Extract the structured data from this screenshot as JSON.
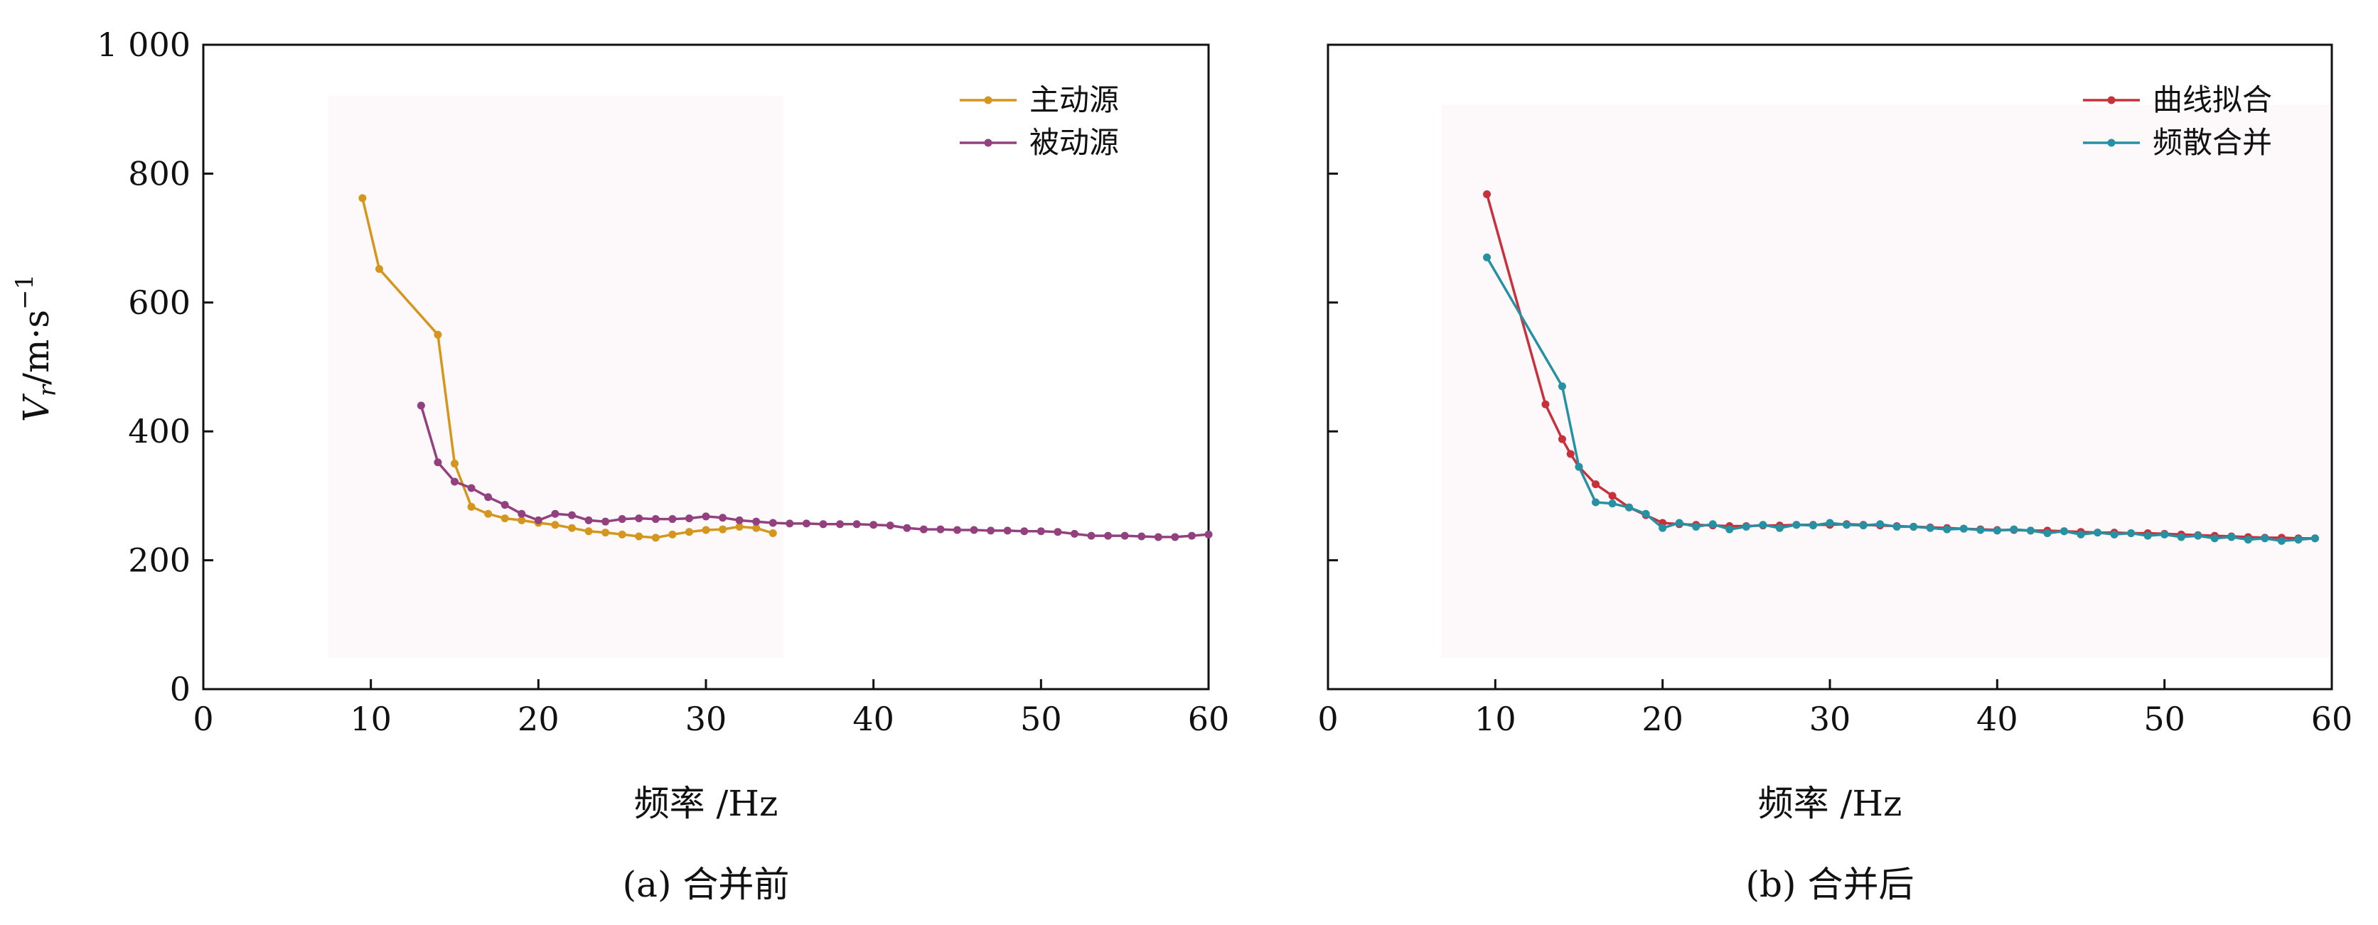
{
  "ytitle": {
    "main": "V",
    "sub": "r",
    "unit": "/m·s",
    "sup": "−1"
  },
  "chart_data": [
    {
      "type": "line",
      "caption": "(a) 合并前",
      "xlabel": "频率 /Hz",
      "ylabel": "Vr/m·s−1",
      "xlim": [
        0,
        60
      ],
      "ylim": [
        0,
        1000
      ],
      "xticks": [
        0,
        10,
        20,
        30,
        40,
        50,
        60
      ],
      "yticks": [
        0,
        200,
        400,
        600,
        800,
        1000
      ],
      "ytick_labels": [
        "0",
        "200",
        "400",
        "600",
        "800",
        "1 000"
      ],
      "legend_position": "top-right",
      "series": [
        {
          "name": "主动源",
          "color": "#d4961c",
          "x": [
            9.5,
            10.5,
            14.0,
            15.0,
            16.0,
            17.0,
            18.0,
            19.0,
            20.0,
            21.0,
            22.0,
            23.0,
            24.0,
            25.0,
            26.0,
            27.0,
            28.0,
            29.0,
            30.0,
            31.0,
            32.0,
            33.0,
            34.0
          ],
          "y": [
            762,
            652,
            550,
            350,
            283,
            272,
            265,
            262,
            258,
            255,
            250,
            245,
            243,
            240,
            237,
            235,
            240,
            244,
            247,
            248,
            252,
            250,
            242
          ]
        },
        {
          "name": "被动源",
          "color": "#93407e",
          "x": [
            13,
            14,
            15,
            16,
            17,
            18,
            19,
            20,
            21,
            22,
            23,
            24,
            25,
            26,
            27,
            28,
            29,
            30,
            31,
            32,
            33,
            34,
            35,
            36,
            37,
            38,
            39,
            40,
            41,
            42,
            43,
            44,
            45,
            46,
            47,
            48,
            49,
            50,
            51,
            52,
            53,
            54,
            55,
            56,
            57,
            58,
            59,
            60
          ],
          "y": [
            440,
            352,
            322,
            312,
            298,
            286,
            272,
            262,
            272,
            270,
            262,
            260,
            264,
            265,
            264,
            264,
            265,
            268,
            266,
            262,
            260,
            258,
            257,
            257,
            256,
            256,
            256,
            255,
            254,
            250,
            248,
            248,
            247,
            247,
            246,
            246,
            245,
            245,
            244,
            241,
            238,
            238,
            238,
            237,
            236,
            236,
            238,
            240
          ]
        }
      ]
    },
    {
      "type": "line",
      "caption": "(b) 合并后",
      "xlabel": "频率 /Hz",
      "ylabel": "",
      "xlim": [
        0,
        60
      ],
      "ylim": [
        0,
        1000
      ],
      "xticks": [
        0,
        10,
        20,
        30,
        40,
        50,
        60
      ],
      "yticks": [
        0,
        200,
        400,
        600,
        800,
        1000
      ],
      "ytick_labels": [],
      "legend_position": "top-right",
      "series": [
        {
          "name": "曲线拟合",
          "color": "#c8303c",
          "x": [
            9.5,
            13,
            14,
            14.5,
            15,
            16,
            17,
            18,
            19,
            20,
            21,
            22,
            23,
            24,
            25,
            26,
            27,
            28,
            29,
            30,
            31,
            32,
            33,
            34,
            35,
            36,
            37,
            38,
            39,
            40,
            41,
            42,
            43,
            44,
            45,
            46,
            47,
            48,
            49,
            50,
            51,
            52,
            53,
            54,
            55,
            56,
            57,
            58,
            59
          ],
          "y": [
            768,
            442,
            388,
            365,
            345,
            318,
            300,
            282,
            270,
            258,
            256,
            255,
            254,
            253,
            253,
            254,
            254,
            255,
            255,
            255,
            256,
            255,
            254,
            253,
            252,
            251,
            250,
            249,
            248,
            247,
            247,
            246,
            246,
            245,
            244,
            243,
            243,
            242,
            242,
            241,
            240,
            239,
            238,
            237,
            236,
            235,
            235,
            234,
            234
          ]
        },
        {
          "name": "频散合并",
          "color": "#2591a3",
          "x": [
            9.5,
            14,
            15,
            16,
            17,
            18,
            19,
            20,
            21,
            22,
            23,
            24,
            25,
            26,
            27,
            28,
            29,
            30,
            31,
            32,
            33,
            34,
            35,
            36,
            37,
            38,
            39,
            40,
            41,
            42,
            43,
            44,
            45,
            46,
            47,
            48,
            49,
            50,
            51,
            52,
            53,
            54,
            55,
            56,
            57,
            58,
            59
          ],
          "y": [
            670,
            470,
            345,
            290,
            288,
            282,
            272,
            250,
            258,
            252,
            256,
            248,
            252,
            255,
            250,
            255,
            254,
            258,
            255,
            254,
            256,
            252,
            252,
            250,
            248,
            249,
            247,
            246,
            248,
            246,
            242,
            245,
            240,
            243,
            240,
            242,
            238,
            240,
            236,
            238,
            234,
            236,
            232,
            234,
            230,
            232,
            234
          ]
        }
      ]
    }
  ]
}
